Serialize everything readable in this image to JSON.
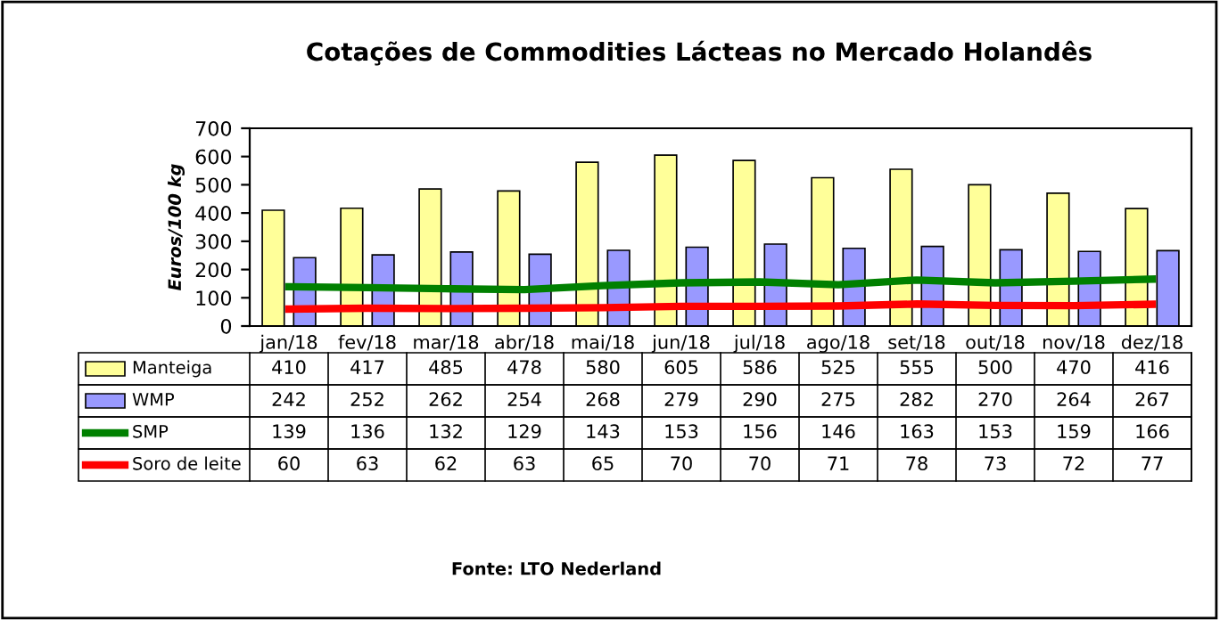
{
  "chart_data": {
    "type": "bar",
    "title": "Cotações de Commodities Lácteas no Mercado Holandês",
    "ylabel": "Euros/100 kg",
    "categories": [
      "jan/18",
      "fev/18",
      "mar/18",
      "abr/18",
      "mai/18",
      "jun/18",
      "jul/18",
      "ago/18",
      "set/18",
      "out/18",
      "nov/18",
      "dez/18"
    ],
    "series": [
      {
        "name": "Manteiga",
        "color": "#ffff99",
        "values": [
          410,
          417,
          485,
          478,
          580,
          605,
          586,
          525,
          555,
          500,
          470,
          416
        ]
      },
      {
        "name": "WMP",
        "color": "#9999ff",
        "values": [
          242,
          252,
          262,
          254,
          268,
          279,
          290,
          275,
          282,
          270,
          264,
          267
        ]
      },
      {
        "name": "SMP",
        "type": "line",
        "color": "#008000",
        "values": [
          139,
          136,
          132,
          129,
          143,
          153,
          156,
          146,
          163,
          153,
          159,
          166
        ]
      },
      {
        "name": "Soro de leite",
        "type": "line",
        "color": "#ff0000",
        "values": [
          60,
          63,
          62,
          63,
          65,
          70,
          70,
          71,
          78,
          73,
          72,
          77
        ]
      }
    ],
    "ylim": [
      0,
      700
    ],
    "yticks": [
      0,
      100,
      200,
      300,
      400,
      500,
      600,
      700
    ],
    "grid": false,
    "data_labels": true,
    "legend": "bottom",
    "marker": "none",
    "annotations": [
      "Fonte: LTO Nederland"
    ]
  }
}
